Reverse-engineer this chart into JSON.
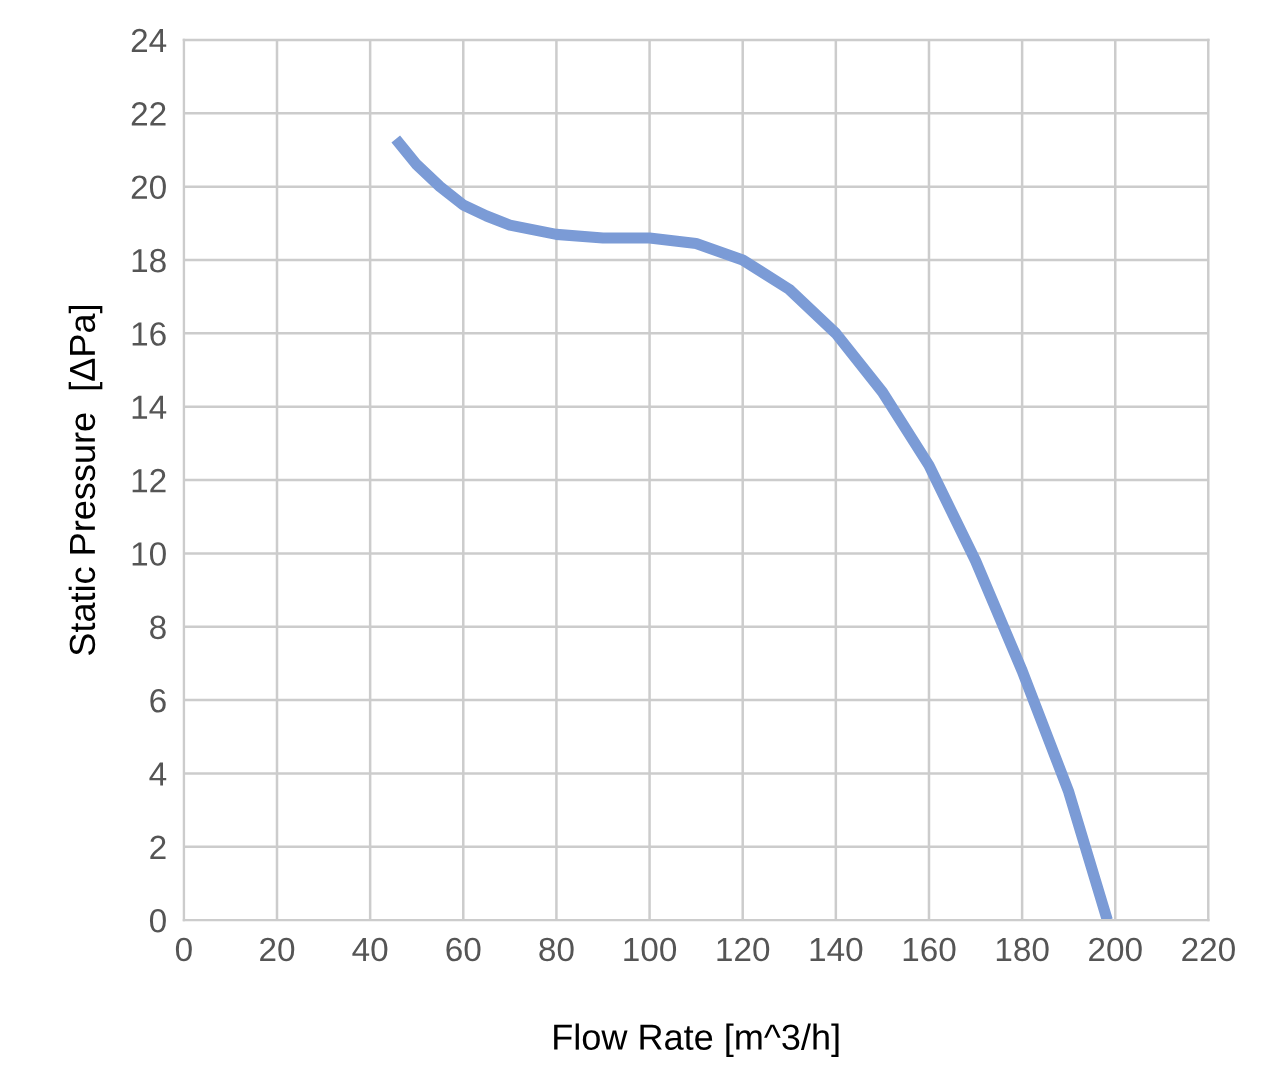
{
  "chart_data": {
    "type": "line",
    "xlabel": "Flow Rate [m^3/h]",
    "ylabel": "Static Pressure  [ΔPa]",
    "series": [
      {
        "color": "#7b9bd6",
        "x": [
          45.5,
          50,
          55,
          60,
          65,
          70,
          80,
          90,
          100,
          110,
          120,
          130,
          140,
          150,
          160,
          170,
          180,
          190,
          198.3
        ],
        "values": [
          21.3,
          20.6,
          20.0,
          19.5,
          19.2,
          18.95,
          18.7,
          18.6,
          18.6,
          18.45,
          18.0,
          17.2,
          16.0,
          14.4,
          12.4,
          9.8,
          6.8,
          3.5,
          0
        ]
      }
    ],
    "xlim": [
      0,
      220
    ],
    "ylim": [
      0,
      24
    ],
    "xticks": [
      0,
      20,
      40,
      60,
      80,
      100,
      120,
      140,
      160,
      180,
      200,
      220
    ],
    "yticks": [
      0,
      2,
      4,
      6,
      8,
      10,
      12,
      14,
      16,
      18,
      20,
      22,
      24
    ],
    "grid": true,
    "legend": false,
    "marker": "none",
    "line_style": "solid"
  }
}
